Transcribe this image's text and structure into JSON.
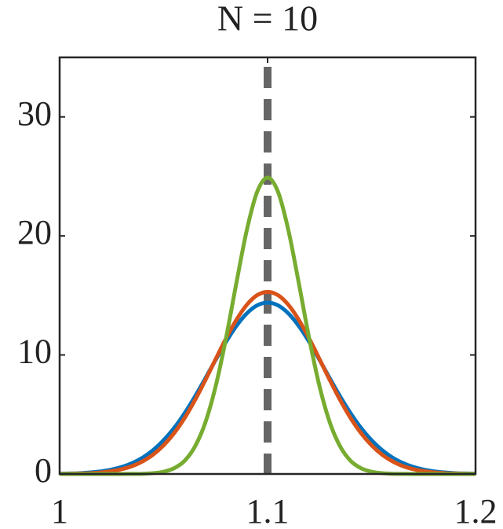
{
  "chart_data": {
    "type": "line",
    "title": "N = 10",
    "x": [
      1,
      1.005,
      1.01,
      1.015,
      1.02,
      1.025,
      1.03,
      1.035,
      1.04,
      1.045,
      1.05,
      1.055,
      1.06,
      1.065,
      1.07,
      1.075,
      1.08,
      1.085,
      1.09,
      1.095,
      1.1,
      1.105,
      1.11,
      1.115,
      1.12,
      1.125,
      1.13,
      1.135,
      1.14,
      1.145,
      1.15,
      1.155,
      1.16,
      1.165,
      1.17,
      1.175,
      1.18,
      1.185,
      1.19,
      1.195,
      1.2
    ],
    "series": [
      {
        "color": "#0072bd",
        "values": [
          0.02,
          0.04,
          0.07,
          0.13,
          0.22,
          0.37,
          0.59,
          0.92,
          1.38,
          2.01,
          2.83,
          3.85,
          5.08,
          6.48,
          8.01,
          9.58,
          11.1,
          12.44,
          13.49,
          14.17,
          14.4,
          14.17,
          13.49,
          12.44,
          11.1,
          9.58,
          8.01,
          6.48,
          5.08,
          3.85,
          2.83,
          2.01,
          1.38,
          0.92,
          0.59,
          0.37,
          0.22,
          0.13,
          0.07,
          0.04,
          0.02
        ]
      },
      {
        "color": "#d95319",
        "values": [
          0.01,
          0.02,
          0.04,
          0.07,
          0.13,
          0.24,
          0.41,
          0.67,
          1.07,
          1.63,
          2.41,
          3.42,
          4.68,
          6.18,
          7.86,
          9.64,
          11.38,
          12.95,
          14.21,
          15.02,
          15.3,
          15.02,
          14.21,
          12.95,
          11.38,
          9.64,
          7.86,
          6.18,
          4.68,
          3.42,
          2.41,
          1.63,
          1.07,
          0.67,
          0.41,
          0.24,
          0.13,
          0.07,
          0.04,
          0.02,
          0.01
        ]
      },
      {
        "color": "#77ac30",
        "values": [
          0,
          0,
          0,
          0,
          0,
          0,
          0,
          0.01,
          0.02,
          0.07,
          0.19,
          0.48,
          1.09,
          2.28,
          4.29,
          7.35,
          11.4,
          16.05,
          20.48,
          23.71,
          24.9,
          23.71,
          20.48,
          16.05,
          11.4,
          7.35,
          4.29,
          2.28,
          1.09,
          0.48,
          0.19,
          0.07,
          0.02,
          0.01,
          0,
          0,
          0,
          0,
          0,
          0,
          0
        ]
      }
    ],
    "vline": {
      "x": 1.1,
      "color": "#666666"
    },
    "xlim": [
      1,
      1.2
    ],
    "xticks": [
      1,
      1.1,
      1.2
    ],
    "ylim": [
      0,
      35
    ],
    "yticks": [
      0,
      10,
      20,
      30
    ]
  }
}
